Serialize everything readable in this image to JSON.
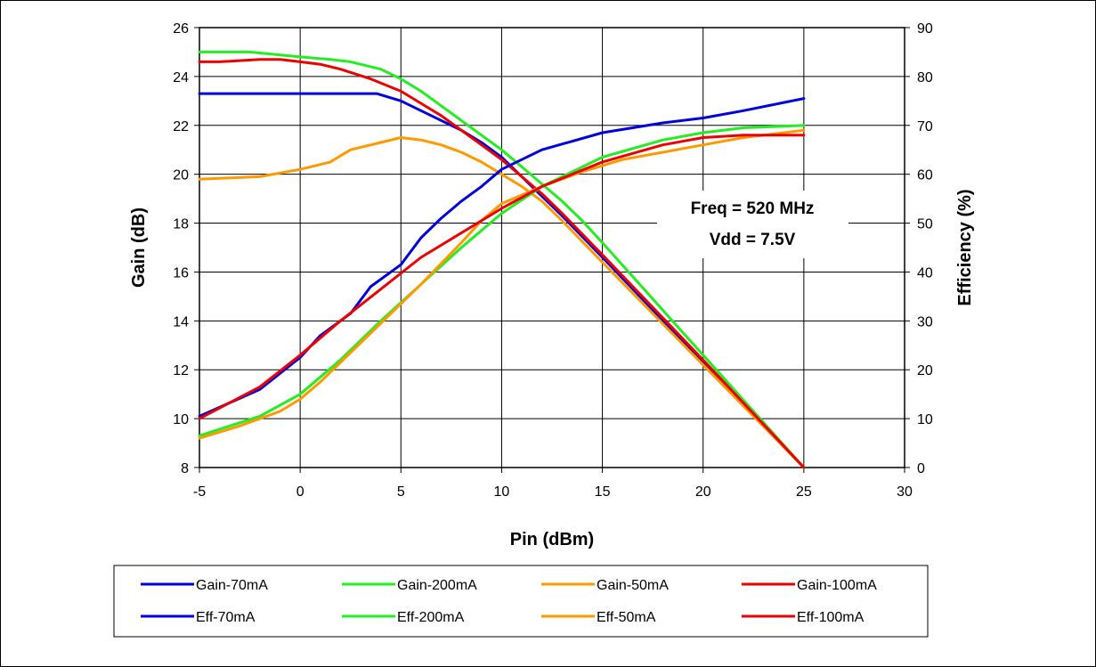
{
  "chart_data": {
    "type": "line",
    "title": "",
    "xlabel": "Pin (dBm)",
    "ylabel": "Gain (dB)",
    "y2label": "Efficiency (%)",
    "xlim": [
      -5,
      30
    ],
    "ylim": [
      8,
      26
    ],
    "y2lim": [
      0,
      90
    ],
    "xticks": [
      "-5",
      "0",
      "5",
      "10",
      "15",
      "20",
      "25",
      "30"
    ],
    "yticks": [
      "8",
      "10",
      "12",
      "14",
      "16",
      "18",
      "20",
      "22",
      "24",
      "26"
    ],
    "y2ticks": [
      "0",
      "10",
      "20",
      "30",
      "40",
      "50",
      "60",
      "70",
      "80",
      "90"
    ],
    "grid": true,
    "legend_position": "bottom",
    "annotation": [
      "Freq = 520 MHz",
      "Vdd = 7.5V"
    ],
    "colors": {
      "70mA": "#0000dd",
      "200mA": "#22ee22",
      "50mA": "#ff9900",
      "100mA": "#ee0000"
    },
    "series": [
      {
        "name": "Gain-70mA",
        "axis": "left",
        "color": "#0000dd",
        "x": [
          -5,
          0,
          2,
          3.8,
          5,
          6,
          7,
          8,
          9,
          10,
          11,
          12,
          13,
          15,
          20,
          25
        ],
        "y": [
          23.3,
          23.3,
          23.3,
          23.3,
          23.0,
          22.6,
          22.2,
          21.8,
          21.3,
          20.7,
          19.9,
          19.1,
          18.3,
          16.6,
          12.3,
          8.0
        ]
      },
      {
        "name": "Gain-200mA",
        "axis": "left",
        "color": "#22ee22",
        "x": [
          -5,
          -2.5,
          0,
          1.5,
          2.5,
          4,
          5,
          6,
          7,
          8,
          9,
          10,
          11,
          12,
          13,
          14,
          15,
          20,
          25
        ],
        "y": [
          25.0,
          25.0,
          24.8,
          24.7,
          24.6,
          24.3,
          23.9,
          23.4,
          22.8,
          22.2,
          21.6,
          21.0,
          20.3,
          19.6,
          18.9,
          18.1,
          17.2,
          12.6,
          8.0
        ]
      },
      {
        "name": "Gain-50mA",
        "axis": "left",
        "color": "#ff9900",
        "x": [
          -5,
          -2,
          0,
          1.5,
          2.5,
          4,
          5,
          6,
          7,
          8,
          9,
          10,
          11,
          12,
          13,
          15,
          20,
          25
        ],
        "y": [
          19.8,
          19.9,
          20.2,
          20.5,
          21.0,
          21.3,
          21.5,
          21.4,
          21.2,
          20.9,
          20.5,
          20.0,
          19.5,
          18.9,
          18.1,
          16.4,
          12.2,
          8.0
        ]
      },
      {
        "name": "Gain-100mA",
        "axis": "left",
        "color": "#ee0000",
        "x": [
          -5,
          -4,
          -2,
          -1,
          0,
          1,
          2,
          3.5,
          5,
          6,
          7,
          8,
          9,
          10,
          11,
          12,
          13,
          15,
          20,
          25
        ],
        "y": [
          24.6,
          24.6,
          24.7,
          24.7,
          24.6,
          24.5,
          24.3,
          23.9,
          23.4,
          22.9,
          22.4,
          21.8,
          21.2,
          20.6,
          19.9,
          19.2,
          18.4,
          16.7,
          12.4,
          8.0
        ]
      },
      {
        "name": "Eff-70mA",
        "axis": "right",
        "color": "#0000dd",
        "x": [
          -5,
          -2,
          0,
          1,
          2.5,
          3.5,
          5,
          6,
          7,
          8,
          9,
          10,
          12,
          15,
          18,
          20,
          22,
          25
        ],
        "y": [
          10.5,
          16,
          22.5,
          27,
          31.5,
          37,
          41.5,
          47,
          51,
          54.5,
          57.5,
          61,
          65,
          68.5,
          70.5,
          71.5,
          73,
          75.5
        ]
      },
      {
        "name": "Eff-200mA",
        "axis": "right",
        "color": "#22ee22",
        "x": [
          -5,
          -2,
          0,
          2,
          4,
          6,
          8,
          10,
          12,
          15,
          18,
          20,
          22,
          25
        ],
        "y": [
          6.5,
          10.5,
          15,
          22,
          30,
          37.5,
          45,
          52,
          57.5,
          63.5,
          67,
          68.5,
          69.5,
          70
        ]
      },
      {
        "name": "Eff-50mA",
        "axis": "right",
        "color": "#ff9900",
        "x": [
          -5,
          -3,
          -1,
          0,
          1,
          2,
          4,
          6,
          8,
          9,
          10,
          12,
          14,
          16,
          18,
          20,
          22,
          25
        ],
        "y": [
          6,
          8.5,
          11.5,
          14,
          17.5,
          21.5,
          29.5,
          37.5,
          46,
          50.5,
          54,
          57.5,
          60.5,
          63,
          64.5,
          66,
          67.5,
          69
        ]
      },
      {
        "name": "Eff-100mA",
        "axis": "right",
        "color": "#ee0000",
        "x": [
          -5,
          -2,
          0,
          2,
          4,
          6,
          8,
          10,
          12,
          15,
          18,
          20,
          22,
          25
        ],
        "y": [
          10,
          16.5,
          23,
          30,
          36.5,
          43,
          48,
          53,
          57.5,
          62.5,
          66,
          67.5,
          68,
          68
        ]
      }
    ]
  }
}
